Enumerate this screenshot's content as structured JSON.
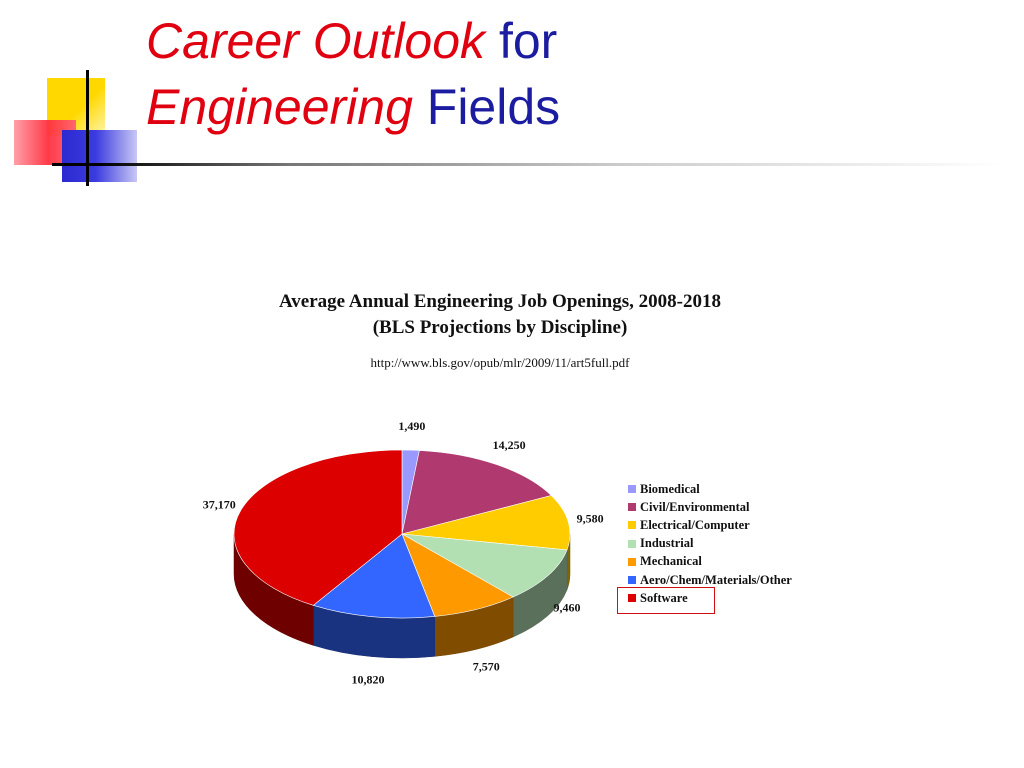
{
  "slide": {
    "title_line1_italic": "Career Outlook",
    "title_line1_plain": "for",
    "title_line2_italic": "Engineering",
    "title_line2_plain": "Fields"
  },
  "chart_data": {
    "type": "pie",
    "title": "Average Annual Engineering Job Openings, 2008-2018",
    "subtitle": "(BLS Projections by Discipline)",
    "source": "http://www.bls.gov/opub/mlr/2009/11/art5full.pdf",
    "legend_position": "right",
    "highlighted": "Software",
    "categories": [
      "Biomedical",
      "Civil/Environmental",
      "Electrical/Computer",
      "Industrial",
      "Mechanical",
      "Aero/Chem/Materials/Other",
      "Software"
    ],
    "values": [
      1490,
      14250,
      9580,
      9460,
      7570,
      10820,
      37170
    ],
    "value_labels": [
      "1,490",
      "14,250",
      "9,580",
      "9,460",
      "7,570",
      "10,820",
      "37,170"
    ],
    "colors": [
      "#9999ff",
      "#b03a70",
      "#ffcc00",
      "#b3e0b3",
      "#ff9900",
      "#3366ff",
      "#dd0000"
    ]
  }
}
